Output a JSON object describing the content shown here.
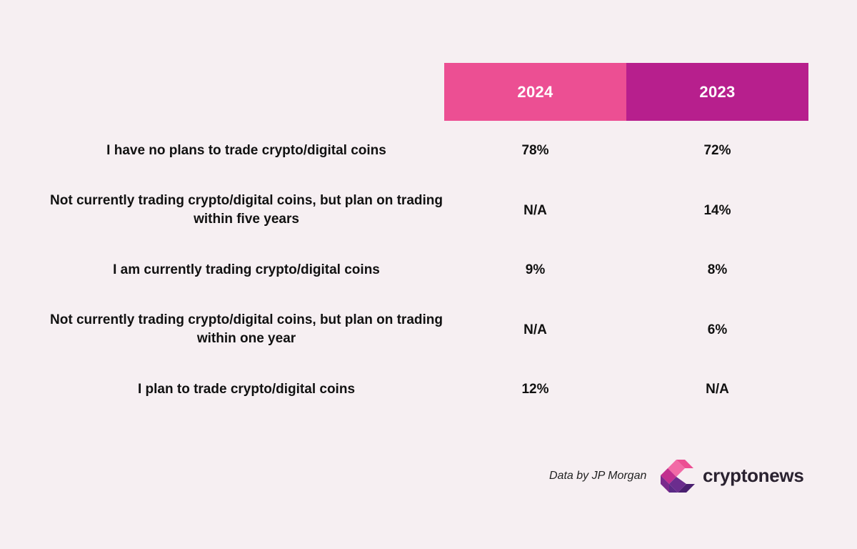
{
  "chart_data": {
    "type": "table",
    "columns": [
      "2024",
      "2023"
    ],
    "rows": [
      {
        "label": "I have no plans to trade crypto/digital coins",
        "values": [
          "78%",
          "72%"
        ]
      },
      {
        "label": "Not currently trading crypto/digital coins, but plan on trading within five years",
        "values": [
          "N/A",
          "14%"
        ]
      },
      {
        "label": "I am currently trading crypto/digital coins",
        "values": [
          "9%",
          "8%"
        ]
      },
      {
        "label": "Not currently trading crypto/digital coins, but plan on trading within one year",
        "values": [
          "N/A",
          "6%"
        ]
      },
      {
        "label": "I plan to trade crypto/digital coins",
        "values": [
          "12%",
          "N/A"
        ]
      }
    ]
  },
  "footer": {
    "source": "Data by JP Morgan",
    "brand": "cryptonews",
    "logo_icon": "cryptonews-logo-icon"
  },
  "colors": {
    "background": "#f6eff2",
    "header_2024": "#ec4f93",
    "header_2023": "#b71f8d",
    "logo_pink": "#ec4f93",
    "logo_purple": "#5b2a86"
  }
}
